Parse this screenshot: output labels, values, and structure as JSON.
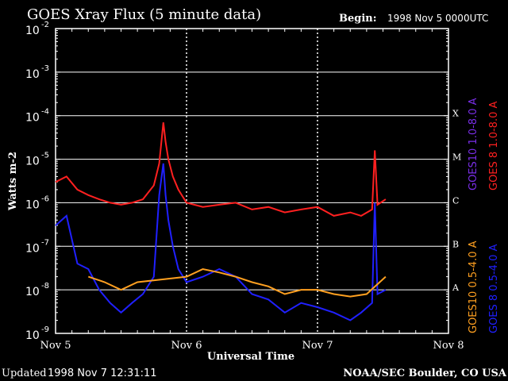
{
  "header": {
    "title": "GOES Xray Flux (5 minute data)",
    "begin_label": "Begin:",
    "begin_value": "1998 Nov 5 0000UTC"
  },
  "footer": {
    "updated_label": "Updated",
    "updated_value": "1998 Nov  7 12:31:11",
    "credit": "NOAA/SEC Boulder, CO USA"
  },
  "chart_data": {
    "type": "line",
    "title": "GOES Xray Flux (5 minute data)",
    "xlabel": "Universal Time",
    "ylabel": "Watts m-2",
    "y_scale": "log",
    "ylim": [
      1e-09,
      0.01
    ],
    "xlim": [
      "1998-11-05 00:00",
      "1998-11-08 00:00"
    ],
    "x_ticks": [
      "Nov 5",
      "Nov 6",
      "Nov 7",
      "Nov 8"
    ],
    "y_ticks": [
      {
        "base": "10",
        "exp": "-9"
      },
      {
        "base": "10",
        "exp": "-8"
      },
      {
        "base": "10",
        "exp": "-7"
      },
      {
        "base": "10",
        "exp": "-6"
      },
      {
        "base": "10",
        "exp": "-5"
      },
      {
        "base": "10",
        "exp": "-4"
      },
      {
        "base": "10",
        "exp": "-3"
      },
      {
        "base": "10",
        "exp": "-2"
      }
    ],
    "flare_classes": [
      "A",
      "B",
      "C",
      "M",
      "X"
    ],
    "grid": true,
    "legend_position": "right, rotated",
    "legend": [
      {
        "text": "GOES10 1.0-8.0 A",
        "color": "#7a2ee8"
      },
      {
        "text": "GOES 8 1.0-8.0 A",
        "color": "#ff2020"
      },
      {
        "text": "GOES10 0.5-4.0 A",
        "color": "#ffa020"
      },
      {
        "text": "GOES 8 0.5-4.0 A",
        "color": "#2020ff"
      }
    ],
    "series": [
      {
        "name": "GOES 8 1.0-8.0 A",
        "color": "#ff2020",
        "x": [
          "1998-11-05 00:00",
          "1998-11-05 02:00",
          "1998-11-05 04:00",
          "1998-11-05 06:00",
          "1998-11-05 08:00",
          "1998-11-05 10:00",
          "1998-11-05 12:00",
          "1998-11-05 14:00",
          "1998-11-05 16:00",
          "1998-11-05 18:00",
          "1998-11-05 19:00",
          "1998-11-05 19:45",
          "1998-11-05 20:10",
          "1998-11-05 20:40",
          "1998-11-05 21:30",
          "1998-11-05 22:30",
          "1998-11-06 00:00",
          "1998-11-06 03:00",
          "1998-11-06 06:00",
          "1998-11-06 09:00",
          "1998-11-06 12:00",
          "1998-11-06 15:00",
          "1998-11-06 18:00",
          "1998-11-06 21:00",
          "1998-11-07 00:00",
          "1998-11-07 03:00",
          "1998-11-07 06:00",
          "1998-11-07 08:00",
          "1998-11-07 10:00",
          "1998-11-07 10:30",
          "1998-11-07 11:00",
          "1998-11-07 12:30"
        ],
        "values": [
          3e-06,
          4e-06,
          2e-06,
          1.5e-06,
          1.2e-06,
          1e-06,
          9e-07,
          1e-06,
          1.2e-06,
          2.5e-06,
          8e-06,
          7e-05,
          2.5e-05,
          1e-05,
          4e-06,
          2e-06,
          1e-06,
          8e-07,
          9e-07,
          1e-06,
          7e-07,
          8e-07,
          6e-07,
          7e-07,
          8e-07,
          5e-07,
          6e-07,
          5e-07,
          7e-07,
          1.6e-05,
          9e-07,
          1.2e-06
        ]
      },
      {
        "name": "GOES 8 0.5-4.0 A",
        "color": "#2020ff",
        "x": [
          "1998-11-05 00:00",
          "1998-11-05 02:00",
          "1998-11-05 04:00",
          "1998-11-05 06:00",
          "1998-11-05 08:00",
          "1998-11-05 10:00",
          "1998-11-05 12:00",
          "1998-11-05 14:00",
          "1998-11-05 16:00",
          "1998-11-05 18:00",
          "1998-11-05 19:00",
          "1998-11-05 19:45",
          "1998-11-05 20:10",
          "1998-11-05 20:40",
          "1998-11-05 21:30",
          "1998-11-05 22:30",
          "1998-11-06 00:00",
          "1998-11-06 03:00",
          "1998-11-06 06:00",
          "1998-11-06 09:00",
          "1998-11-06 12:00",
          "1998-11-06 15:00",
          "1998-11-06 18:00",
          "1998-11-06 21:00",
          "1998-11-07 00:00",
          "1998-11-07 03:00",
          "1998-11-07 06:00",
          "1998-11-07 08:00",
          "1998-11-07 10:00",
          "1998-11-07 10:30",
          "1998-11-07 11:00",
          "1998-11-07 12:30"
        ],
        "values": [
          3e-07,
          5e-07,
          4e-08,
          3e-08,
          1e-08,
          5e-09,
          3e-09,
          5e-09,
          8e-09,
          2e-08,
          1.5e-06,
          8e-06,
          1.5e-06,
          4e-07,
          1e-07,
          3e-08,
          1.5e-08,
          2e-08,
          3e-08,
          2e-08,
          8e-09,
          6e-09,
          3e-09,
          5e-09,
          4e-09,
          3e-09,
          2e-09,
          3e-09,
          5e-09,
          1e-06,
          8e-09,
          1e-08
        ]
      },
      {
        "name": "GOES10 0.5-4.0 A",
        "color": "#ffa020",
        "x": [
          "1998-11-05 06:00",
          "1998-11-05 09:00",
          "1998-11-05 12:00",
          "1998-11-05 15:00",
          "1998-11-06 00:00",
          "1998-11-06 03:00",
          "1998-11-06 06:00",
          "1998-11-06 09:00",
          "1998-11-06 12:00",
          "1998-11-06 15:00",
          "1998-11-06 18:00",
          "1998-11-06 21:00",
          "1998-11-07 00:00",
          "1998-11-07 03:00",
          "1998-11-07 06:00",
          "1998-11-07 09:00",
          "1998-11-07 12:30"
        ],
        "values": [
          2e-08,
          1.5e-08,
          1e-08,
          1.5e-08,
          2e-08,
          3e-08,
          2.5e-08,
          2e-08,
          1.5e-08,
          1.2e-08,
          8e-09,
          1e-08,
          1e-08,
          8e-09,
          7e-09,
          8e-09,
          2e-08
        ]
      }
    ]
  }
}
